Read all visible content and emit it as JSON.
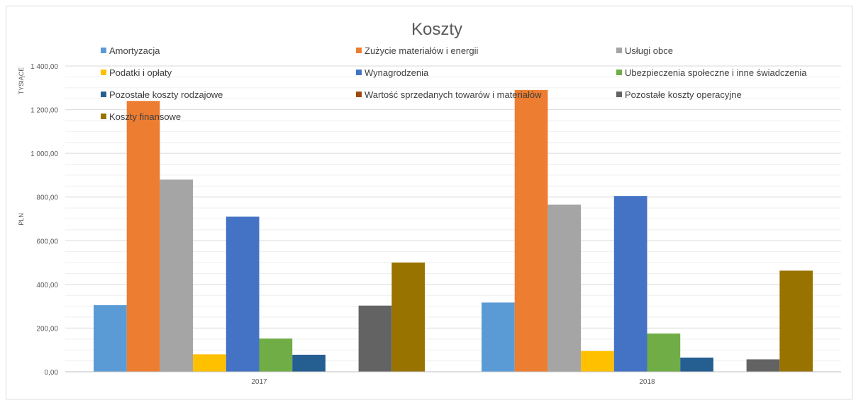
{
  "chart_data": {
    "type": "bar",
    "title": "Koszty",
    "ylabel": "PLN",
    "yunit_label": "TYSIĄCE",
    "ylim": [
      0,
      1400
    ],
    "ytick_labels": [
      "0,00",
      "200,00",
      "400,00",
      "600,00",
      "800,00",
      "1 000,00",
      "1 200,00",
      "1 400,00"
    ],
    "ytick_values": [
      0,
      200,
      400,
      600,
      800,
      1000,
      1200,
      1400
    ],
    "grid": true,
    "legend_position": "top",
    "categories": [
      "2017",
      "2018"
    ],
    "series": [
      {
        "name": "Amortyzacja",
        "color": "#5b9bd5",
        "values": [
          305,
          317
        ]
      },
      {
        "name": "Zużycie materiałów i energii",
        "color": "#ed7d31",
        "values": [
          1240,
          1290
        ]
      },
      {
        "name": "Usługi obce",
        "color": "#a5a5a5",
        "values": [
          880,
          765
        ]
      },
      {
        "name": "Podatki i opłaty",
        "color": "#ffc000",
        "values": [
          80,
          95
        ]
      },
      {
        "name": "Wynagrodzenia",
        "color": "#4472c4",
        "values": [
          710,
          805
        ]
      },
      {
        "name": "Ubezpieczenia społeczne i inne świadczenia",
        "color": "#70ad47",
        "values": [
          152,
          175
        ]
      },
      {
        "name": "Pozostałe koszty rodzajowe",
        "color": "#255e91",
        "values": [
          78,
          65
        ]
      },
      {
        "name": "Wartość sprzedanych towarów i materiałów",
        "color": "#9e480e",
        "values": [
          0,
          0
        ]
      },
      {
        "name": "Pozostałe koszty operacyjne",
        "color": "#636363",
        "values": [
          303,
          57
        ]
      },
      {
        "name": "Koszty finansowe",
        "color": "#997300",
        "values": [
          500,
          463
        ]
      }
    ]
  }
}
